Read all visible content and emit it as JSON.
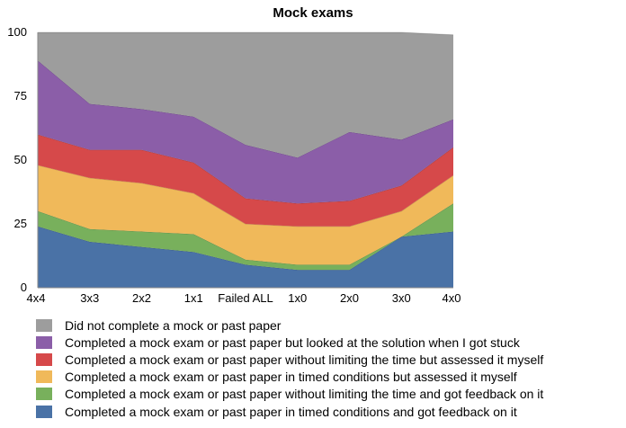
{
  "chart_data": {
    "type": "area",
    "stacked": true,
    "title": "Mock exams",
    "xlabel": "",
    "ylabel": "",
    "ylim": [
      0,
      100
    ],
    "yticks": [
      0,
      25,
      50,
      75,
      100
    ],
    "categories": [
      "4x4",
      "3x3",
      "2x2",
      "1x1",
      "Failed ALL",
      "1x0",
      "2x0",
      "3x0",
      "4x0"
    ],
    "grid": false,
    "legend_position": "bottom",
    "series": [
      {
        "name": "Completed a mock exam or past paper in timed conditions and got feedback on it",
        "color": "#4a72a6",
        "values": [
          24,
          18,
          16,
          14,
          9,
          7,
          7,
          20,
          22
        ]
      },
      {
        "name": "Completed a mock exam or past paper without limiting the time and got feedback on it",
        "color": "#78b05c",
        "values": [
          6,
          5,
          6,
          7,
          2,
          2,
          2,
          0,
          11
        ]
      },
      {
        "name": "Completed a mock exam or past paper in timed conditions but assessed it myself",
        "color": "#f0b95a",
        "values": [
          18,
          20,
          19,
          16,
          14,
          15,
          15,
          10,
          11
        ]
      },
      {
        "name": "Completed a mock exam or past paper without limiting the time but assessed it myself",
        "color": "#d6494a",
        "values": [
          12,
          11,
          13,
          12,
          10,
          9,
          10,
          10,
          11
        ]
      },
      {
        "name": "Completed a mock exam or past paper but looked at the solution when I got stuck",
        "color": "#8b5ea8",
        "values": [
          29,
          18,
          16,
          18,
          21,
          18,
          27,
          18,
          11
        ]
      },
      {
        "name": "Did not complete a mock or past paper",
        "color": "#9d9d9d",
        "values": [
          11,
          28,
          30,
          33,
          44,
          49,
          39,
          42,
          33
        ]
      }
    ]
  },
  "legend_order": [
    5,
    4,
    3,
    2,
    1,
    0
  ]
}
